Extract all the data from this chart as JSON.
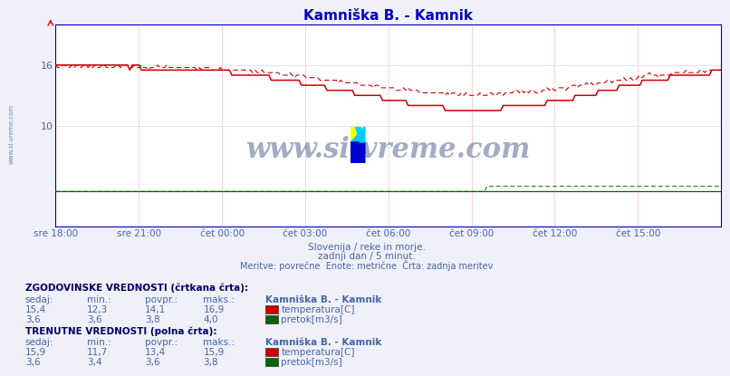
{
  "title": "Kamniška B. - Kamnik",
  "bg_color": "#f0f0f8",
  "plot_bg_color": "#ffffff",
  "grid_color_v": "#ffcccc",
  "grid_color_h": "#ddddee",
  "border_color": "#0000bb",
  "title_color": "#0000cc",
  "text_color": "#4466aa",
  "label_color": "#4466aa",
  "watermark_text": "www.si-vreme.com",
  "watermark_color": "#1a3070",
  "side_text": "www.si-vreme.com",
  "subtitle1": "Slovenija / reke in morje.",
  "subtitle2": "zadnji dan / 5 minut.",
  "subtitle3": "Meritve: povrečne  Enote: metrične  Črta: zadnja meritev",
  "xlabel_ticks": [
    "sre 18:00",
    "sre 21:00",
    "čet 00:00",
    "čet 03:00",
    "čet 06:00",
    "čet 09:00",
    "čet 12:00",
    "čet 15:00"
  ],
  "ytick_vals": [
    10,
    16
  ],
  "ylim": [
    0,
    20
  ],
  "n_points": 288,
  "temp_color": "#cc0000",
  "flow_color": "#006600",
  "hist_section_title": "ZGODOVINSKE VREDNOSTI (črtkana črta):",
  "curr_section_title": "TRENUTNE VREDNOSTI (polna črta):",
  "col_headers": [
    "sedaj:",
    "min.:",
    "povpr.:",
    "maks.:",
    "Kamniška B. - Kamnik"
  ],
  "hist_temp": [
    "15,4",
    "12,3",
    "14,1",
    "16,9"
  ],
  "hist_flow": [
    "3,6",
    "3,6",
    "3,8",
    "4,0"
  ],
  "curr_temp": [
    "15,9",
    "11,7",
    "13,4",
    "15,9"
  ],
  "curr_flow": [
    "3,6",
    "3,4",
    "3,6",
    "3,8"
  ],
  "temp_label": "temperatura[C]",
  "flow_label": "pretok[m3/s]"
}
